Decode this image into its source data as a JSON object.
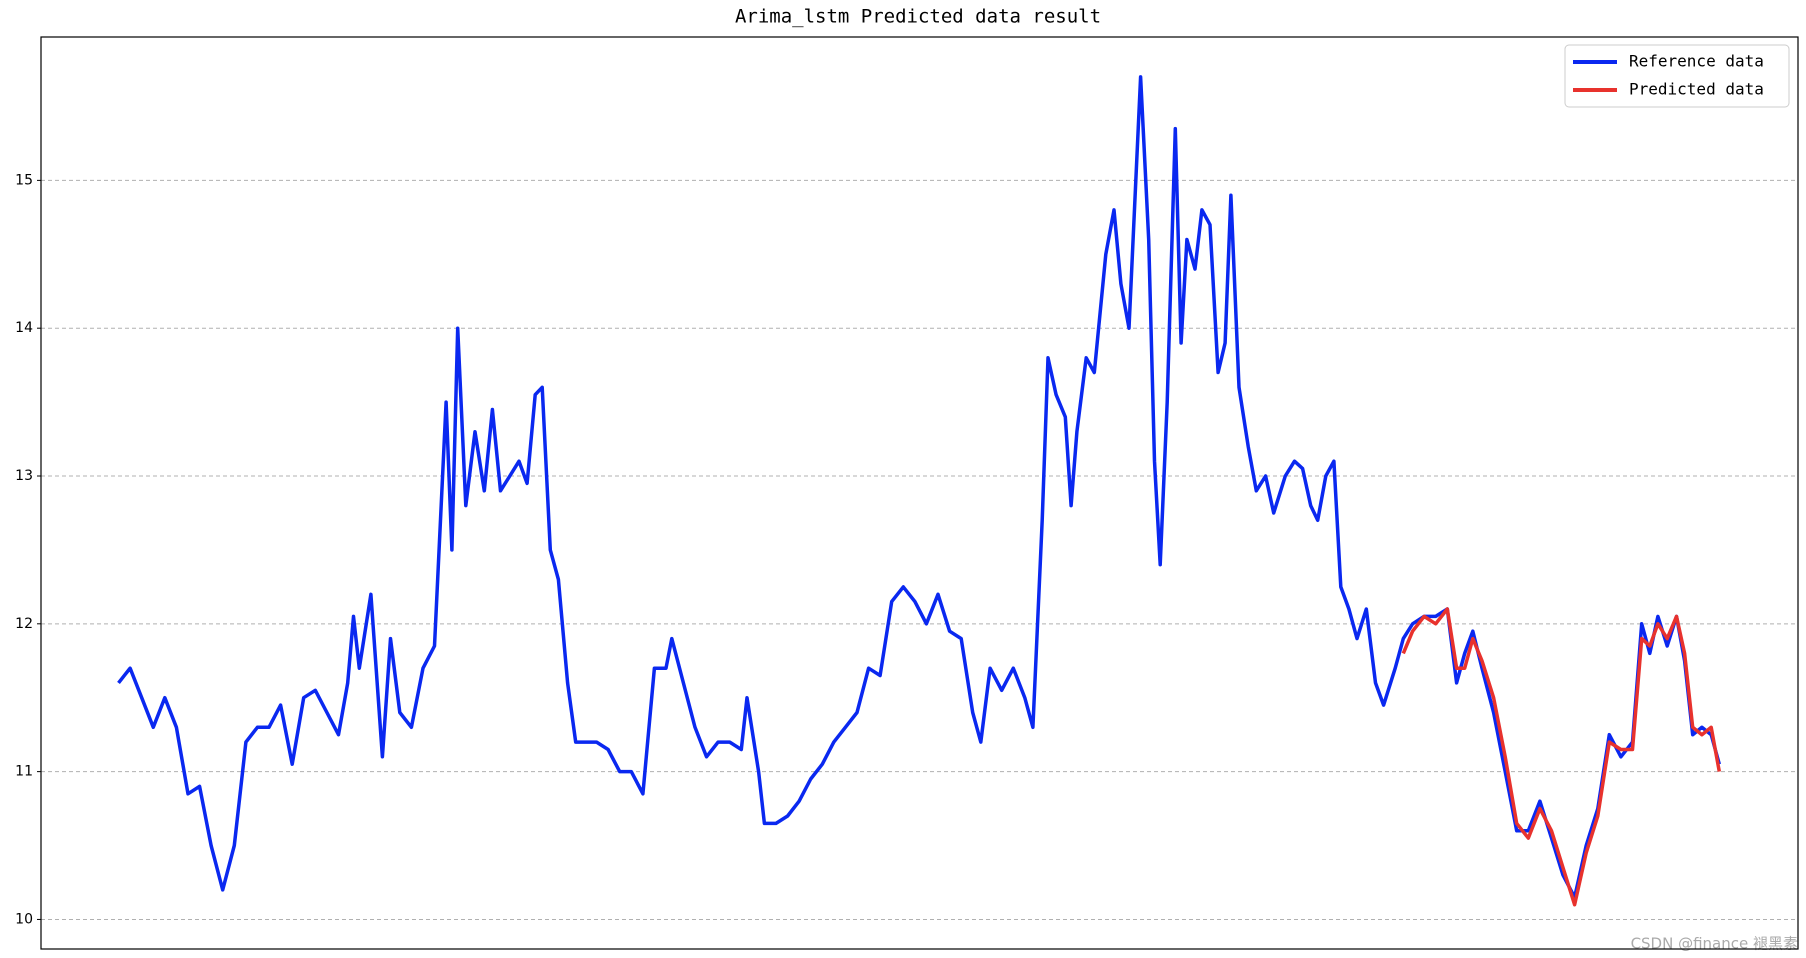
{
  "chart_data": {
    "type": "line",
    "title": "Arima_lstm Predicted data result",
    "x": [
      0,
      1,
      2,
      3,
      4,
      5,
      6,
      7,
      8,
      9,
      10,
      11,
      12,
      13,
      14,
      15,
      16,
      17,
      18,
      19,
      19.8,
      20.3,
      20.8,
      21.8,
      22.8,
      23.5,
      24.3,
      25.3,
      26.3,
      27.3,
      28.3,
      28.8,
      29.3,
      30,
      30.8,
      31.6,
      32.3,
      33,
      33.8,
      34.6,
      35.3,
      36,
      36.6,
      37.3,
      38,
      38.8,
      39.5,
      40.3,
      41.3,
      42.3,
      43.3,
      44.3,
      45.3,
      46.3,
      47.3,
      47.8,
      48.8,
      49.8,
      50.8,
      51.8,
      52.8,
      53.8,
      54.3,
      55.3,
      55.8,
      56.8,
      57.8,
      58.8,
      59.8,
      60.8,
      61.8,
      62.8,
      63.8,
      64.8,
      65.8,
      66.8,
      67.8,
      68.8,
      69.8,
      70.8,
      71.8,
      72.8,
      73.8,
      74.5,
      75.3,
      76.3,
      77.3,
      78.3,
      79,
      79.8,
      80.3,
      81,
      81.8,
      82.3,
      82.8,
      83.6,
      84.3,
      85.3,
      86,
      86.6,
      87.3,
      88.3,
      89,
      89.5,
      90,
      90.6,
      91.3,
      91.8,
      92.3,
      93,
      93.6,
      94.3,
      95,
      95.6,
      96.1,
      96.8,
      97.6,
      98.3,
      99.1,
      99.8,
      100.8,
      101.6,
      102.3,
      103,
      103.6,
      104.3,
      105,
      105.6,
      106.3,
      107,
      107.8,
      108.6,
      109.3,
      110.3,
      111,
      111.8,
      112.8,
      113.8,
      114.8,
      115.6,
      116.3,
      117,
      117.8,
      118.8,
      119.8,
      120.8,
      121.8,
      122.8,
      123.8,
      124.8,
      125.8,
      126.8,
      127.8,
      128.8,
      129.8,
      130.8,
      131.6,
      132.3,
      133,
      133.8,
      134.6,
      135.3,
      136,
      136.8,
      137.6,
      138.3
    ],
    "series": [
      {
        "name": "Reference data",
        "color": "#0a28f0",
        "values": [
          11.6,
          11.7,
          11.5,
          11.3,
          11.5,
          11.3,
          10.85,
          10.9,
          10.5,
          10.2,
          10.5,
          11.2,
          11.3,
          11.3,
          11.45,
          11.05,
          11.5,
          11.55,
          11.4,
          11.25,
          11.6,
          12.05,
          11.7,
          12.2,
          11.1,
          11.9,
          11.4,
          11.3,
          11.7,
          11.85,
          13.5,
          12.5,
          14.0,
          12.8,
          13.3,
          12.9,
          13.45,
          12.9,
          13.0,
          13.1,
          12.95,
          13.55,
          13.6,
          12.5,
          12.3,
          11.6,
          11.2,
          11.2,
          11.2,
          11.15,
          11.0,
          11.0,
          10.85,
          11.7,
          11.7,
          11.9,
          11.6,
          11.3,
          11.1,
          11.2,
          11.2,
          11.15,
          11.5,
          11.0,
          10.65,
          10.65,
          10.7,
          10.8,
          10.95,
          11.05,
          11.2,
          11.3,
          11.4,
          11.7,
          11.65,
          12.15,
          12.25,
          12.15,
          12.0,
          12.2,
          11.95,
          11.9,
          11.4,
          11.2,
          11.7,
          11.55,
          11.7,
          11.5,
          11.3,
          12.7,
          13.8,
          13.55,
          13.4,
          12.8,
          13.3,
          13.8,
          13.7,
          14.5,
          14.8,
          14.3,
          14.0,
          15.7,
          14.6,
          13.1,
          12.4,
          13.5,
          15.35,
          13.9,
          14.6,
          14.4,
          14.8,
          14.7,
          13.7,
          13.9,
          14.9,
          13.6,
          13.2,
          12.9,
          13.0,
          12.75,
          13.0,
          13.1,
          13.05,
          12.8,
          12.7,
          13.0,
          13.1,
          12.25,
          12.1,
          11.9,
          12.1,
          11.6,
          11.45,
          11.7,
          11.9,
          12.0,
          12.05,
          12.05,
          12.1,
          11.6,
          11.8,
          11.95,
          11.7,
          11.4,
          11.0,
          10.6,
          10.6,
          10.8,
          10.55,
          10.3,
          10.15,
          10.5,
          10.75,
          11.25,
          11.1,
          11.2,
          12.0,
          11.8,
          12.05,
          11.85,
          12.05,
          11.75,
          11.25,
          11.3,
          11.25,
          11.05
        ]
      },
      {
        "name": "Predicted data",
        "color": "#e8322d",
        "values": [
          null,
          null,
          null,
          null,
          null,
          null,
          null,
          null,
          null,
          null,
          null,
          null,
          null,
          null,
          null,
          null,
          null,
          null,
          null,
          null,
          null,
          null,
          null,
          null,
          null,
          null,
          null,
          null,
          null,
          null,
          null,
          null,
          null,
          null,
          null,
          null,
          null,
          null,
          null,
          null,
          null,
          null,
          null,
          null,
          null,
          null,
          null,
          null,
          null,
          null,
          null,
          null,
          null,
          null,
          null,
          null,
          null,
          null,
          null,
          null,
          null,
          null,
          null,
          null,
          null,
          null,
          null,
          null,
          null,
          null,
          null,
          null,
          null,
          null,
          null,
          null,
          null,
          null,
          null,
          null,
          null,
          null,
          null,
          null,
          null,
          null,
          null,
          null,
          null,
          null,
          null,
          null,
          null,
          null,
          null,
          null,
          null,
          null,
          null,
          null,
          null,
          null,
          null,
          null,
          null,
          null,
          null,
          null,
          null,
          null,
          null,
          null,
          null,
          null,
          null,
          null,
          null,
          null,
          null,
          null,
          null,
          null,
          null,
          null,
          null,
          null,
          null,
          null,
          null,
          null,
          null,
          null,
          null,
          null,
          11.8,
          11.95,
          12.05,
          12.0,
          12.1,
          11.7,
          11.7,
          11.9,
          11.75,
          11.5,
          11.1,
          10.65,
          10.55,
          10.75,
          10.6,
          10.35,
          10.1,
          10.45,
          10.7,
          11.2,
          11.15,
          11.15,
          11.9,
          11.85,
          12.0,
          11.9,
          12.05,
          11.8,
          11.3,
          11.25,
          11.3,
          11.0
        ]
      }
    ],
    "xlim": [
      -6.7,
      145.1
    ],
    "ylim": [
      9.8,
      15.97
    ],
    "yticks": [
      10,
      11,
      12,
      13,
      14,
      15
    ],
    "grid": true,
    "legend": "upper right",
    "watermark": "CSDN @finance 褪黑素"
  }
}
